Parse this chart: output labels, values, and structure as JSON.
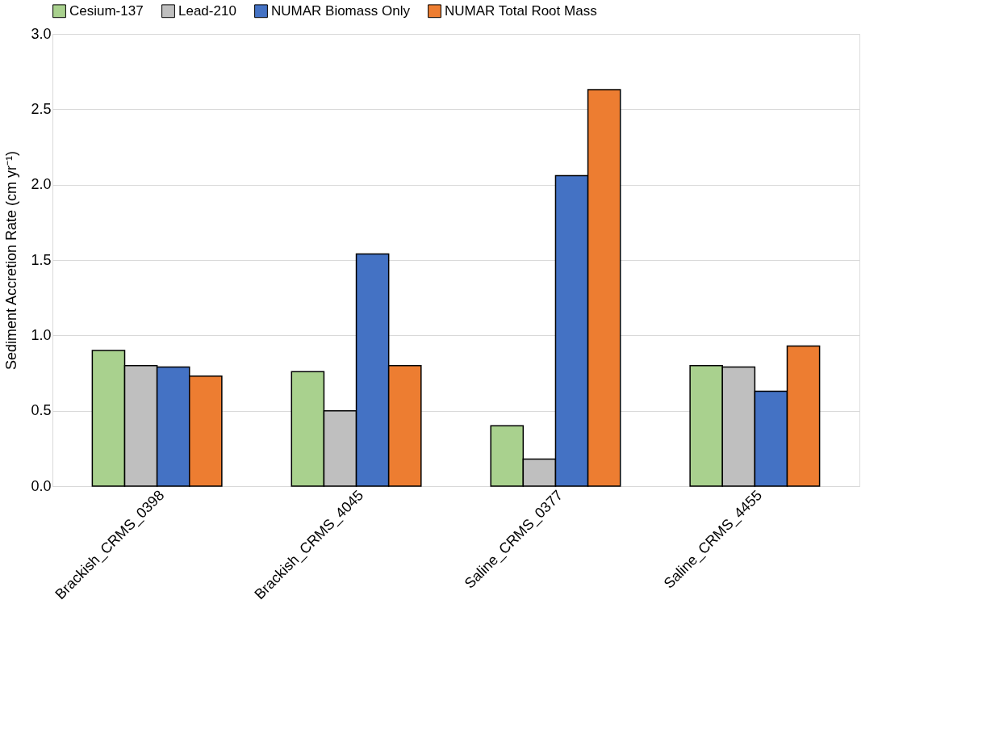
{
  "chart_data": {
    "type": "bar",
    "ylabel": "Sediment Accretion Rate (cm yr⁻¹)",
    "categories": [
      "Brackish_CRMS_0398",
      "Brackish_CRMS_4045",
      "Saline_CRMS_0377",
      "Saline_CRMS_4455"
    ],
    "series": [
      {
        "name": "Cesium-137",
        "color": "#a9d18e",
        "values": [
          0.9,
          0.76,
          0.4,
          0.8
        ]
      },
      {
        "name": "Lead-210",
        "color": "#bfbfbf",
        "values": [
          0.8,
          0.5,
          0.18,
          0.79
        ]
      },
      {
        "name": "NUMAR Biomass Only",
        "color": "#4472c4",
        "values": [
          0.79,
          1.54,
          2.06,
          0.63
        ]
      },
      {
        "name": "NUMAR Total Root Mass",
        "color": "#ed7d31",
        "values": [
          0.73,
          0.8,
          2.63,
          0.93
        ]
      }
    ],
    "ylim": [
      0,
      3.0
    ],
    "yticks": [
      {
        "value": 0,
        "label": "0.0"
      },
      {
        "value": 0.5,
        "label": "0.5"
      },
      {
        "value": 1.0,
        "label": "1.0"
      },
      {
        "value": 1.5,
        "label": "1.5"
      },
      {
        "value": 2.0,
        "label": "2.0"
      },
      {
        "value": 2.5,
        "label": "2.5"
      },
      {
        "value": 3.0,
        "label": "3.0"
      }
    ],
    "grid": "y",
    "legend": "top"
  }
}
